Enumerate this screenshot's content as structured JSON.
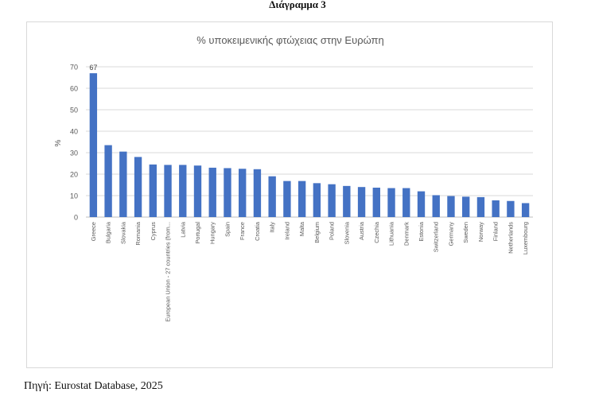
{
  "figure": {
    "caption": "Διάγραμμα 3",
    "source": "Πηγή: Eurostat Database, 2025"
  },
  "chart_data": {
    "type": "bar",
    "title": "% υποκειμενικής φτώχειας στην Ευρώπη",
    "xlabel": "",
    "ylabel": "%",
    "ylim": [
      0,
      70
    ],
    "yticks": [
      0,
      10,
      20,
      30,
      40,
      50,
      60,
      70
    ],
    "grid": true,
    "legend": "none",
    "bar_color": "#4472c4",
    "categories": [
      "Greece",
      "Bulgaria",
      "Slovakia",
      "Romania",
      "Cyprus",
      "European Union - 27 countries (from...",
      "Latvia",
      "Portugal",
      "Hungary",
      "Spain",
      "France",
      "Croatia",
      "Italy",
      "Ireland",
      "Malta",
      "Belgium",
      "Poland",
      "Slovenia",
      "Austria",
      "Czechia",
      "Lithuania",
      "Denmark",
      "Estonia",
      "Switzerland",
      "Germany",
      "Sweden",
      "Norway",
      "Finland",
      "Netherlands",
      "Luxembourg"
    ],
    "values": [
      67,
      33.5,
      30.5,
      28,
      24.5,
      24.3,
      24.3,
      24,
      23,
      22.8,
      22.5,
      22.3,
      19,
      16.8,
      16.8,
      15.8,
      15.3,
      14.5,
      14,
      13.7,
      13.5,
      13.5,
      12,
      10.2,
      9.8,
      9.5,
      9.3,
      7.8,
      7.5,
      6.5
    ],
    "data_labels": [
      {
        "index": 0,
        "text": "67"
      }
    ]
  }
}
